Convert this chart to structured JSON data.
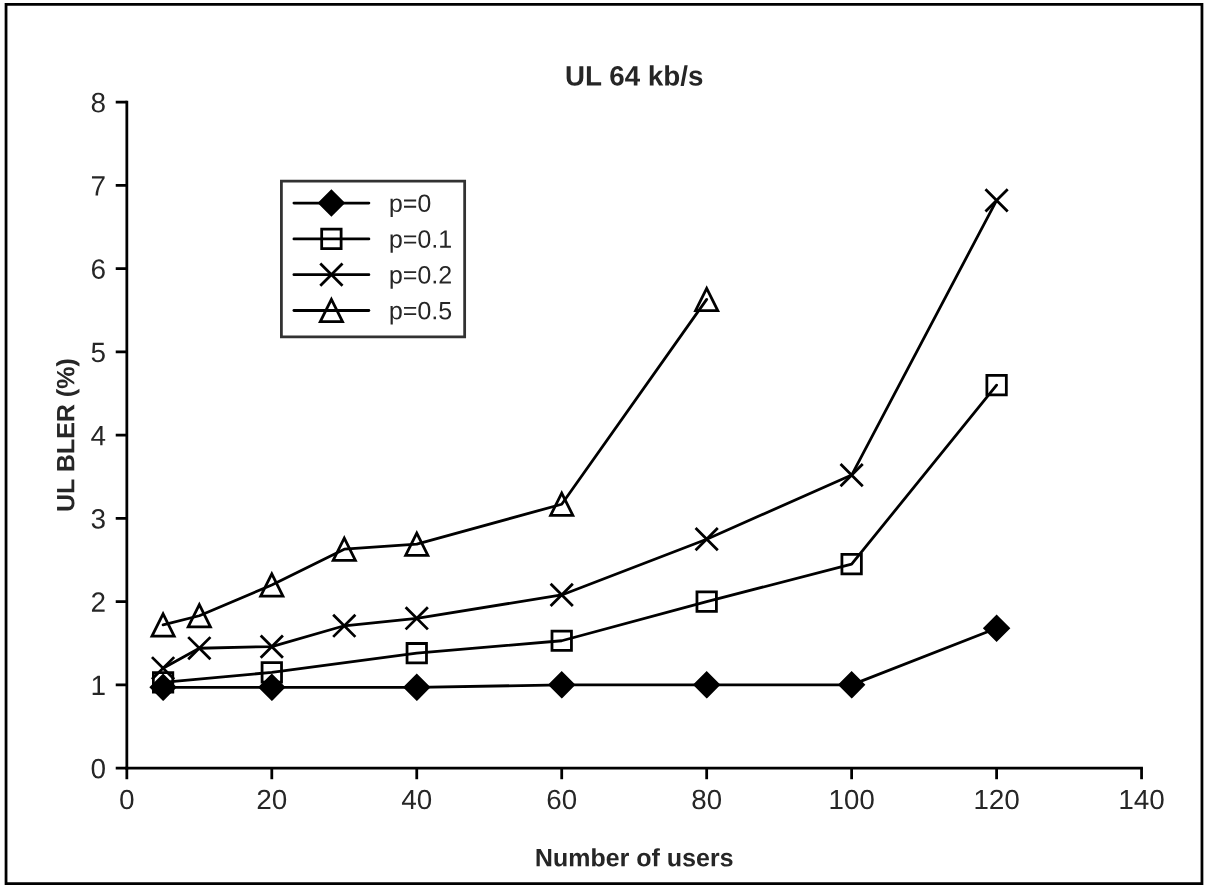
{
  "chart_data": {
    "type": "line",
    "title": "UL 64 kb/s",
    "xlabel": "Number of users",
    "ylabel": "UL BLER (%)",
    "xlim": [
      0,
      140
    ],
    "xticks": [
      0,
      20,
      40,
      60,
      80,
      100,
      120,
      140
    ],
    "ylim": [
      0,
      8
    ],
    "yticks": [
      0,
      1,
      2,
      3,
      4,
      5,
      6,
      7,
      8
    ],
    "grid": false,
    "legend": "top left",
    "line_style": "solid",
    "series": [
      {
        "name": "p=0",
        "color": "#000000",
        "marker": "diamond",
        "x": [
          5,
          20,
          40,
          60,
          80,
          100,
          120
        ],
        "values": [
          0.97,
          0.97,
          0.97,
          1.0,
          1.0,
          1.0,
          1.68
        ]
      },
      {
        "name": "p=0.1",
        "color": "#000000",
        "marker": "square",
        "x": [
          5,
          20,
          40,
          60,
          80,
          100,
          120
        ],
        "values": [
          1.03,
          1.15,
          1.38,
          1.53,
          2.0,
          2.45,
          4.6
        ]
      },
      {
        "name": "p=0.2",
        "color": "#000000",
        "marker": "cross",
        "x": [
          5,
          10,
          20,
          30,
          40,
          60,
          80,
          100,
          120
        ],
        "values": [
          1.2,
          1.44,
          1.46,
          1.71,
          1.8,
          2.08,
          2.75,
          3.52,
          6.82
        ]
      },
      {
        "name": "p=0.5",
        "color": "#000000",
        "marker": "triangle",
        "x": [
          5,
          10,
          20,
          30,
          40,
          60,
          80
        ],
        "values": [
          1.72,
          1.83,
          2.2,
          2.63,
          2.69,
          3.17,
          5.63
        ]
      }
    ]
  }
}
